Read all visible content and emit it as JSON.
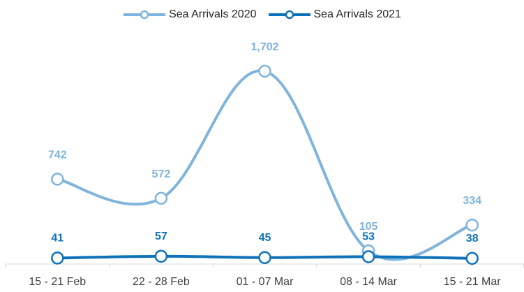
{
  "chart_data": {
    "type": "line",
    "categories": [
      "15 - 21 Feb",
      "22 - 28 Feb",
      "01 - 07 Mar",
      "08 - 14 Mar",
      "15 - 21 Mar"
    ],
    "series": [
      {
        "name": "Sea Arrivals 2020",
        "values": [
          742,
          572,
          1702,
          105,
          334
        ],
        "labels": [
          "742",
          "572",
          "1,702",
          "105",
          "334"
        ],
        "color": "#7fb4dc",
        "smooth": true
      },
      {
        "name": "Sea Arrivals 2021",
        "values": [
          41,
          57,
          45,
          53,
          38
        ],
        "labels": [
          "41",
          "57",
          "45",
          "53",
          "38"
        ],
        "color": "#0e72b9",
        "smooth": true
      }
    ],
    "ylim": [
      0,
      1900
    ],
    "grid": false,
    "legend_position": "top"
  }
}
